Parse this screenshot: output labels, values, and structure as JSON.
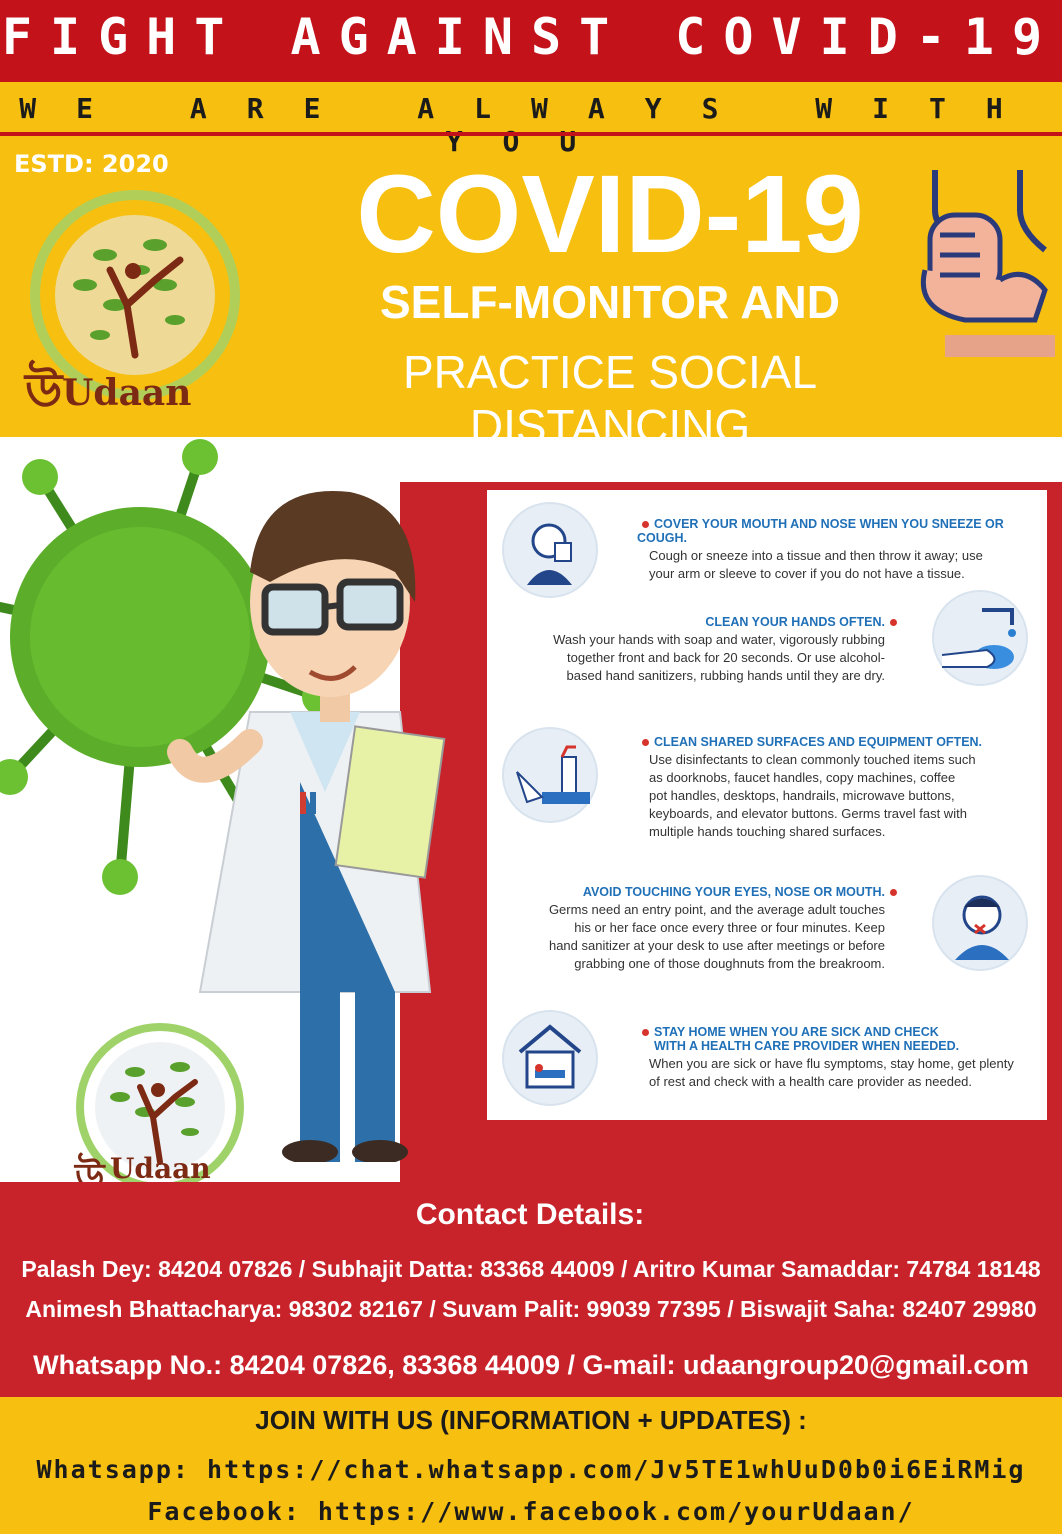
{
  "header": {
    "title": "FIGHT AGAINST COVID-19",
    "tagline": "WE ARE ALWAYS WITH YOU",
    "estd": "ESTD: 2020"
  },
  "hero": {
    "title": "COVID-19",
    "subtitle_1": "SELF-MONITOR AND",
    "subtitle_2": "PRACTICE SOCIAL DISTANCING"
  },
  "logo": {
    "ring_text": "WE ARE ALWAYS WITH YOU",
    "wordmark": "Udaan"
  },
  "tips": [
    {
      "heading": "COVER YOUR MOUTH AND NOSE WHEN YOU SNEEZE OR COUGH.",
      "lines": [
        "Cough or sneeze into a tissue and then throw it away; use",
        "your arm or sleeve to cover if you do not have a tissue."
      ],
      "icon": "sneeze-icon"
    },
    {
      "heading": "CLEAN YOUR HANDS OFTEN.",
      "lines": [
        "Wash your hands with soap and water, vigorously rubbing",
        "together front and back for 20 seconds. Or use alcohol-",
        "based hand sanitizers, rubbing hands until they are dry."
      ],
      "icon": "handwash-icon"
    },
    {
      "heading": "CLEAN SHARED SURFACES AND EQUIPMENT OFTEN.",
      "lines": [
        "Use disinfectants to clean commonly touched items such",
        "as doorknobs, faucet handles, copy machines, coffee",
        "pot handles, desktops, handrails, microwave buttons,",
        "keyboards, and elevator buttons. Germs travel fast with",
        "multiple hands touching shared surfaces."
      ],
      "icon": "spray-icon"
    },
    {
      "heading": "AVOID TOUCHING YOUR EYES, NOSE OR MOUTH.",
      "lines": [
        "Germs need an entry point, and the average adult touches",
        "his or her face once every three or four minutes. Keep",
        "hand sanitizer at your desk to use after meetings or before",
        "grabbing one of those doughnuts from the breakroom."
      ],
      "icon": "face-touch-icon"
    },
    {
      "heading_1": "STAY HOME WHEN YOU ARE SICK AND CHECK",
      "heading_2": "WITH A HEALTH CARE PROVIDER WHEN NEEDED.",
      "lines": [
        "When you are sick or have flu symptoms, stay home, get plenty",
        "of rest and check with a health care provider as needed."
      ],
      "icon": "house-bed-icon"
    }
  ],
  "contact": {
    "title": "Contact Details:",
    "line_1": "Palash Dey: 84204 07826 / Subhajit Datta: 83368 44009 / Aritro Kumar Samaddar: 74784 18148",
    "line_2": "Animesh Bhattacharya: 98302 82167  / Suvam Palit: 99039 77395 / Biswajit Saha: 82407 29980",
    "line_3": "Whatsapp No.: 84204 07826, 83368 44009 / G-mail: udaangroup20@gmail.com"
  },
  "join": {
    "title": "JOIN WITH US (INFORMATION + UPDATES) :",
    "whatsapp": "Whatsapp: https://chat.whatsapp.com/Jv5TE1whUuD0b0i6EiRMig",
    "facebook": "Facebook: https://www.facebook.com/yourUdaan/"
  },
  "colors": {
    "red": "#c4121b",
    "yellow": "#f7bf10",
    "blue_text": "#2070b8",
    "virus_green": "#5cae2a"
  }
}
